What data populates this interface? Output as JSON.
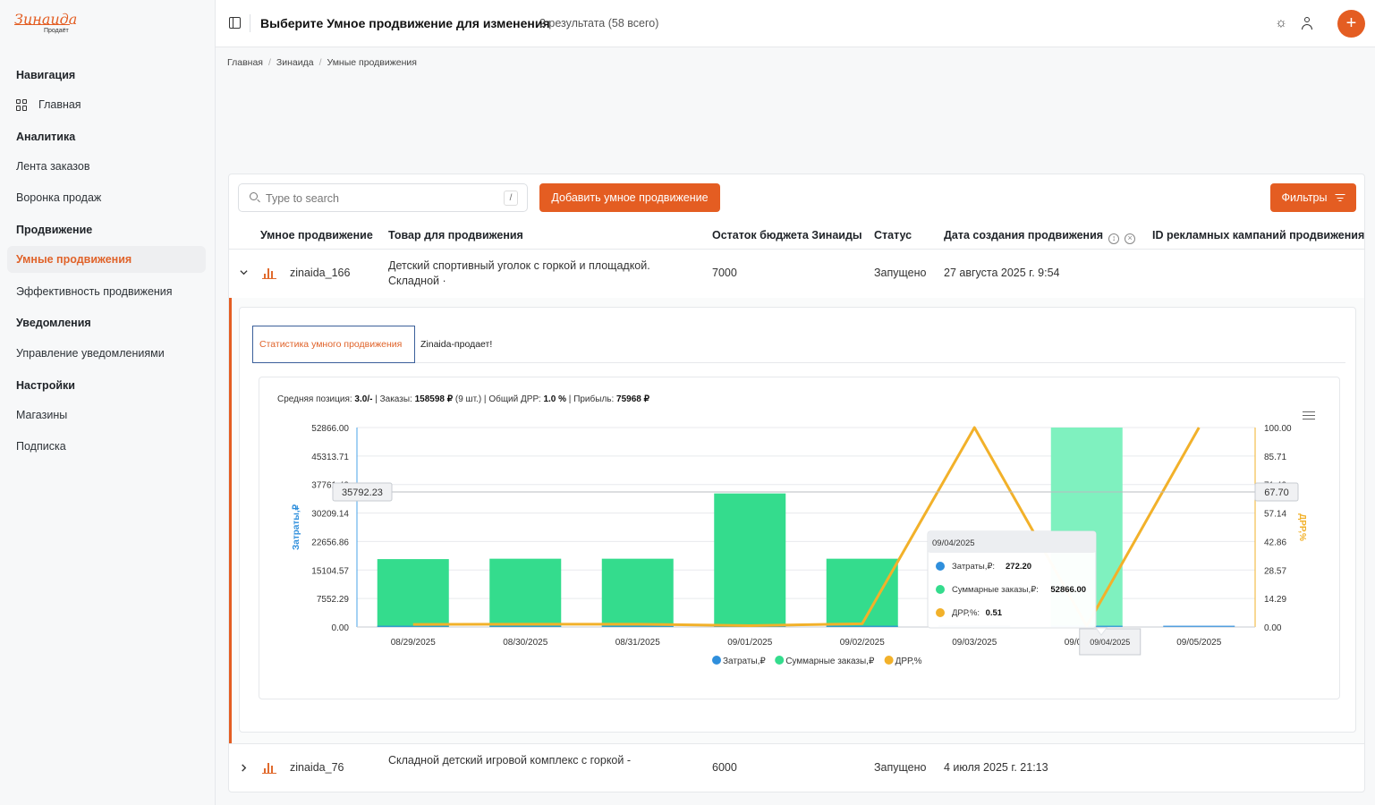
{
  "sidebar": {
    "logo_main": "Зинаида",
    "logo_sub": "Продаёт",
    "sections": [
      {
        "title": "Навигация",
        "items": [
          "Главная"
        ]
      },
      {
        "title": "Аналитика",
        "items": [
          "Лента заказов",
          "Воронка продаж"
        ]
      },
      {
        "title": "Продвижение",
        "items": [
          "Умные продвижения",
          "Эффективность продвижения"
        ]
      },
      {
        "title": "Уведомления",
        "items": [
          "Управление уведомлениями"
        ]
      },
      {
        "title": "Настройки",
        "items": [
          "Магазины",
          "Подписка"
        ]
      }
    ],
    "active_item": "Умные продвижения"
  },
  "header": {
    "title": "Выберите Умное продвижение для изменения",
    "count": "2 результата (58 всего)",
    "add_symbol": "+"
  },
  "breadcrumb": [
    "Главная",
    "Зинаида",
    "Умные продвижения"
  ],
  "toolbar": {
    "search_placeholder": "Type to search",
    "search_shortcut": "/",
    "add_button": "Добавить умное продвижение",
    "filter_button": "Фильтры"
  },
  "table": {
    "columns": [
      "Умное продвижение",
      "Товар для продвижения",
      "Остаток бюджета Зинаиды",
      "Статус",
      "Дата создания продвижения",
      "ID рекламных кампаний продвижения"
    ],
    "rows": [
      {
        "name": "zinaida_166",
        "product_line1": "Детский спортивный уголок с горкой и площадкой.",
        "product_line2": "Складной ·",
        "budget": "7000",
        "status": "Запущено",
        "created": "27 августа 2025 г. 9:54",
        "expanded": true
      },
      {
        "name": "zinaida_76",
        "product_line1": "Складной детский игровой комплекс с горкой -",
        "product_line2": "",
        "budget": "6000",
        "status": "Запущено",
        "created": "4 июля 2025 г. 21:13",
        "expanded": false
      }
    ]
  },
  "detail": {
    "tabs": [
      "Статистика умного продвижения",
      "Zinaida-продает!"
    ],
    "active_tab": "Статистика умного продвижения",
    "stats": {
      "avg_position_label": "Средняя позиция:",
      "avg_position": "3.0/-",
      "orders_label": "Заказы:",
      "orders": "158598 ₽",
      "orders_count": "(9 шт.)",
      "drr_label": "Общий ДРР:",
      "drr": "1.0 %",
      "profit_label": "Прибыль:",
      "profit": "75968 ₽"
    }
  },
  "chart_data": {
    "type": "bar",
    "categories": [
      "08/29/2025",
      "08/30/2025",
      "08/31/2025",
      "09/01/2025",
      "09/02/2025",
      "09/03/2025",
      "09/04/2025",
      "09/05/2025"
    ],
    "series": [
      {
        "name": "Затраты,₽",
        "type": "bar",
        "axis": "left",
        "color": "#2f8fdc",
        "values": [
          250,
          250,
          250,
          250,
          300,
          400,
          272.2,
          200
        ]
      },
      {
        "name": "Суммарные заказы,₽",
        "type": "bar",
        "axis": "left",
        "color": "#34dc8d",
        "values": [
          18000,
          18100,
          18100,
          35400,
          18100,
          0,
          52866,
          0
        ]
      },
      {
        "name": "ДРР,%",
        "type": "line",
        "axis": "right",
        "color": "#f2b12a",
        "values": [
          1.3,
          1.4,
          1.4,
          0.7,
          1.6,
          100,
          0.51,
          100
        ]
      }
    ],
    "ylabel": "Затраты,₽",
    "ylabel_right": "ДРР,%",
    "ylim": [
      0,
      52866
    ],
    "ylim_right": [
      0,
      100
    ],
    "yticks": [
      "52866.00",
      "45313.71",
      "37761.43",
      "30209.14",
      "22656.86",
      "15104.57",
      "7552.29",
      "0.00"
    ],
    "yticks_right": [
      "100.00",
      "85.71",
      "71.43",
      "57.14",
      "42.86",
      "28.57",
      "14.29",
      "0.00"
    ],
    "crosshair": {
      "left_value": "35792.23",
      "right_value": "67.70",
      "x_label": "09/04/2025"
    },
    "tooltip": {
      "title": "09/04/2025",
      "items": [
        {
          "label": "Затраты,₽:",
          "value": "272.20",
          "color": "#2f8fdc"
        },
        {
          "label": "Суммарные заказы,₽:",
          "value": "52866.00",
          "color": "#34dc8d"
        },
        {
          "label": "ДРР,%:",
          "value": "0.51",
          "color": "#f2b12a"
        }
      ]
    },
    "grid": true,
    "legend": "bottom-center"
  }
}
